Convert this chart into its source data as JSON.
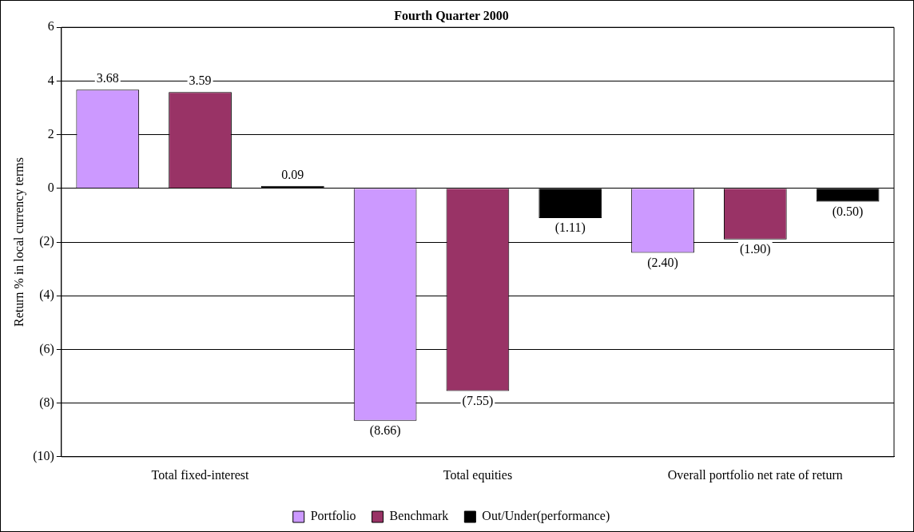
{
  "chart_data": {
    "type": "bar",
    "title": "Fourth Quarter 2000",
    "ylabel": "Return % in local currency terms",
    "categories": [
      "Total fixed-interest",
      "Total equities",
      "Overall portfolio net rate of return"
    ],
    "series": [
      {
        "name": "Portfolio",
        "color": "#cc99ff",
        "values": [
          3.68,
          -8.66,
          -2.4
        ],
        "value_labels": [
          "3.68",
          "(8.66)",
          "(2.40)"
        ]
      },
      {
        "name": "Benchmark",
        "color": "#993366",
        "values": [
          3.59,
          -7.55,
          -1.9
        ],
        "value_labels": [
          "3.59",
          "(7.55)",
          "(1.90)"
        ]
      },
      {
        "name": "Out/Under(performance)",
        "color": "#000000",
        "values": [
          0.09,
          -1.11,
          -0.5
        ],
        "value_labels": [
          "0.09",
          "(1.11)",
          "(0.50)"
        ]
      }
    ],
    "ylim": [
      -10,
      6
    ],
    "yticks": [
      {
        "value": -10,
        "label": "(10)"
      },
      {
        "value": -8,
        "label": "(8)"
      },
      {
        "value": -6,
        "label": "(6)"
      },
      {
        "value": -4,
        "label": "(4)"
      },
      {
        "value": -2,
        "label": "(2)"
      },
      0,
      2,
      4,
      6
    ],
    "grid": "y",
    "legend": "bottom"
  }
}
